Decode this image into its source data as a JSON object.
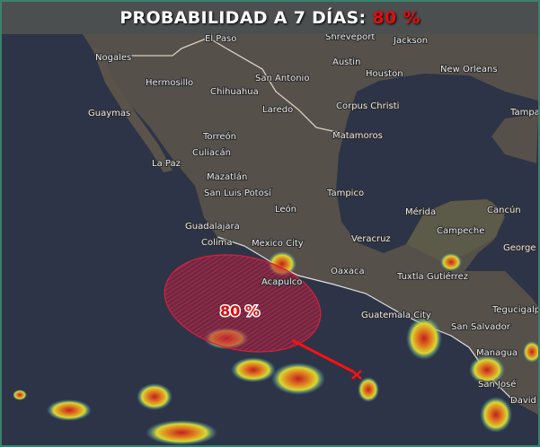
{
  "header": {
    "title": "PROBABILIDAD A 7 DÍAS:",
    "probability": "80 %"
  },
  "colors": {
    "probability_text": "#e30d0d",
    "area_fill": "#c81e3c",
    "track_line": "#ff1010",
    "header_bg": "#4b4f4f",
    "frame": "#3c7f6e"
  },
  "area": {
    "label": "80 %",
    "probability_percent": 80
  },
  "cities": [
    {
      "name": "El Paso"
    },
    {
      "name": "Shreveport"
    },
    {
      "name": "Jackson"
    },
    {
      "name": "Nogales"
    },
    {
      "name": "Austin"
    },
    {
      "name": "Houston"
    },
    {
      "name": "New Orleans"
    },
    {
      "name": "Hermosillo"
    },
    {
      "name": "San Antonio"
    },
    {
      "name": "Chihuahua"
    },
    {
      "name": "Laredo"
    },
    {
      "name": "Guaymas"
    },
    {
      "name": "Corpus Christi"
    },
    {
      "name": "Tampa"
    },
    {
      "name": "Torreón"
    },
    {
      "name": "Matamoros"
    },
    {
      "name": "Culiacán"
    },
    {
      "name": "La Paz"
    },
    {
      "name": "Mazatlán"
    },
    {
      "name": "San Luis Potosí"
    },
    {
      "name": "Tampico"
    },
    {
      "name": "León"
    },
    {
      "name": "Mérida"
    },
    {
      "name": "Cancún"
    },
    {
      "name": "Campeche"
    },
    {
      "name": "Guadalajara"
    },
    {
      "name": "George Town"
    },
    {
      "name": "Colima"
    },
    {
      "name": "Mexico City"
    },
    {
      "name": "Veracruz"
    },
    {
      "name": "Oaxaca"
    },
    {
      "name": "Tuxtla Gutiérrez"
    },
    {
      "name": "Acapulco"
    },
    {
      "name": "Tegucigalpa"
    },
    {
      "name": "Guatemala City"
    },
    {
      "name": "San Salvador"
    },
    {
      "name": "Managua"
    },
    {
      "name": "San José"
    },
    {
      "name": "David"
    }
  ]
}
